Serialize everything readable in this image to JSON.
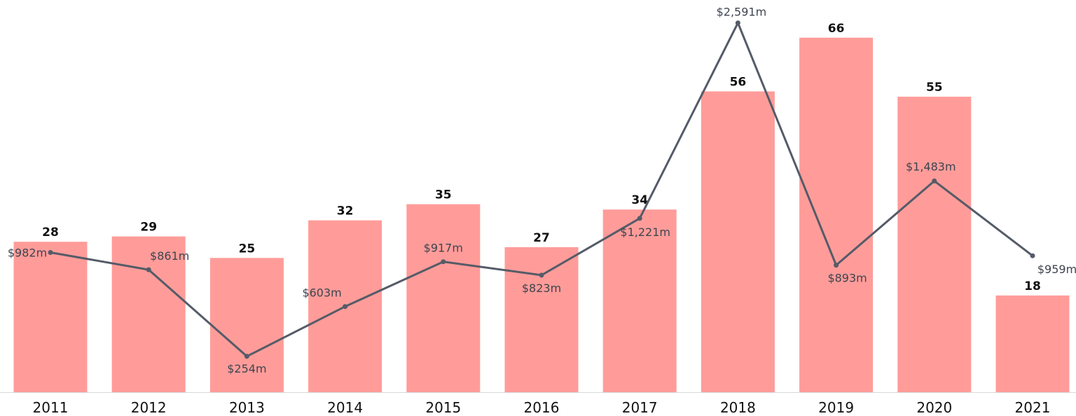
{
  "chart_data": {
    "type": "bar",
    "title": "",
    "xlabel": "",
    "ylabel": "",
    "categories": [
      "2011",
      "2012",
      "2013",
      "2014",
      "2015",
      "2016",
      "2017",
      "2018",
      "2019",
      "2020",
      "2021"
    ],
    "series": [
      {
        "type": "bar",
        "values": [
          28,
          29,
          25,
          32,
          35,
          27,
          34,
          56,
          66,
          55,
          18
        ],
        "labels": [
          "28",
          "29",
          "25",
          "32",
          "35",
          "27",
          "34",
          "56",
          "66",
          "55",
          "18"
        ],
        "color": "#ff9c99"
      },
      {
        "type": "line",
        "values": [
          982,
          861,
          254,
          603,
          917,
          823,
          1221,
          2591,
          893,
          1483,
          959
        ],
        "labels": [
          "$982m",
          "$861m",
          "$254m",
          "$603m",
          "$917m",
          "$823m",
          "$1,221m",
          "$2,591m",
          "$893m",
          "$1,483m",
          "$959m"
        ],
        "color": "#555b68"
      }
    ],
    "grid": false,
    "legend": "none"
  }
}
